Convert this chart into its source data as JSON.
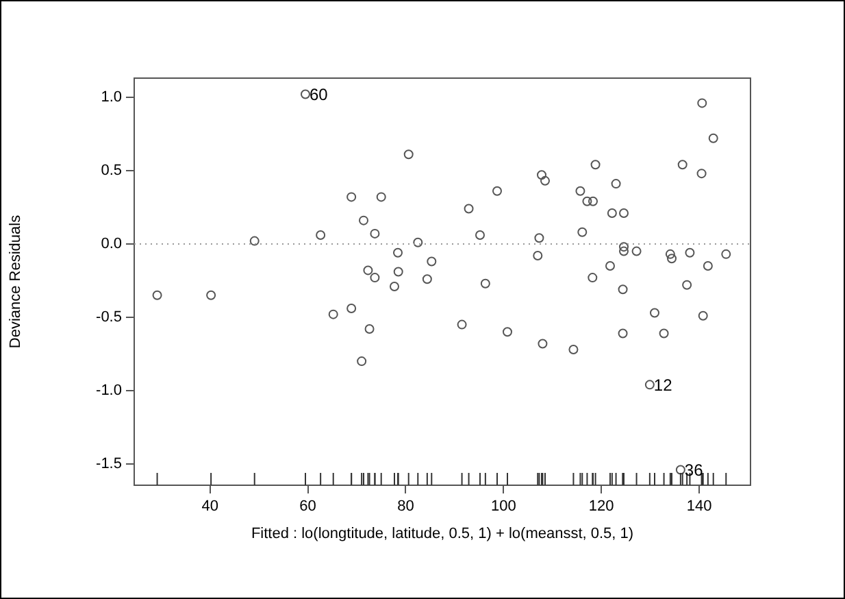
{
  "chart_data": {
    "type": "scatter",
    "xlabel": "Fitted : lo(longtitude, latitude, 0.5, 1) + lo(meansst, 0.5, 1)",
    "ylabel": "Deviance Residuals",
    "xlim": [
      24.5,
      150.5
    ],
    "xticks": [
      40,
      60,
      80,
      100,
      120,
      140
    ],
    "ylim": [
      -1.645,
      1.13
    ],
    "yticks": [
      -1.5,
      {
        "value": -1,
        "label": "-1.0"
      },
      -0.5,
      {
        "value": 0,
        "label": "0.0"
      },
      0.5,
      {
        "value": 1,
        "label": "1.0"
      }
    ],
    "grid": false,
    "legend": false,
    "marker": "circle",
    "series": [
      {
        "color": "#555555",
        "x": [
          29.2,
          40.2,
          49.1,
          59.5,
          80.6,
          68.9,
          75.0,
          71.4,
          62.6,
          73.7,
          82.5,
          78.4,
          85.3,
          72.3,
          78.5,
          73.7,
          84.4,
          77.7,
          65.2,
          68.9,
          72.6,
          71.0,
          92.9,
          98.7,
          95.2,
          96.3,
          91.5,
          100.8,
          107.8,
          108.5,
          107.3,
          107.0,
          108.0,
          114.3,
          118.8,
          115.7,
          117.1,
          118.3,
          123.0,
          122.2,
          124.6,
          116.1,
          124.6,
          124.6,
          127.2,
          121.8,
          118.2,
          124.4,
          124.4,
          130.9,
          132.8,
          129.9,
          134.1,
          134.4,
          138.1,
          137.5,
          136.6,
          140.6,
          142.9,
          140.5,
          141.8,
          145.5,
          140.8,
          136.2
        ],
        "values": [
          -0.35,
          -0.35,
          0.02,
          1.02,
          0.61,
          0.32,
          0.32,
          0.16,
          0.06,
          0.07,
          0.01,
          -0.06,
          -0.12,
          -0.18,
          -0.19,
          -0.23,
          -0.24,
          -0.29,
          -0.48,
          -0.44,
          -0.58,
          -0.8,
          0.24,
          0.36,
          0.06,
          -0.27,
          -0.55,
          -0.6,
          0.47,
          0.43,
          0.04,
          -0.08,
          -0.68,
          -0.72,
          0.54,
          0.36,
          0.29,
          0.29,
          0.41,
          0.21,
          0.21,
          0.08,
          -0.02,
          -0.05,
          -0.05,
          -0.15,
          -0.23,
          -0.31,
          -0.61,
          -0.47,
          -0.61,
          -0.96,
          -0.07,
          -0.1,
          -0.06,
          -0.28,
          0.54,
          0.96,
          0.72,
          0.48,
          -0.15,
          -0.07,
          -0.49,
          -1.54
        ]
      }
    ],
    "ref_lines": [
      {
        "axis": "y",
        "value": 0,
        "color": "#999999",
        "line_style": "dotted"
      }
    ],
    "annotations": [
      {
        "text": "60",
        "x": 59.5,
        "y": 1.02
      },
      {
        "text": "12",
        "x": 129.9,
        "y": -0.96
      },
      {
        "text": "36",
        "x": 136.2,
        "y": -1.54
      }
    ]
  }
}
